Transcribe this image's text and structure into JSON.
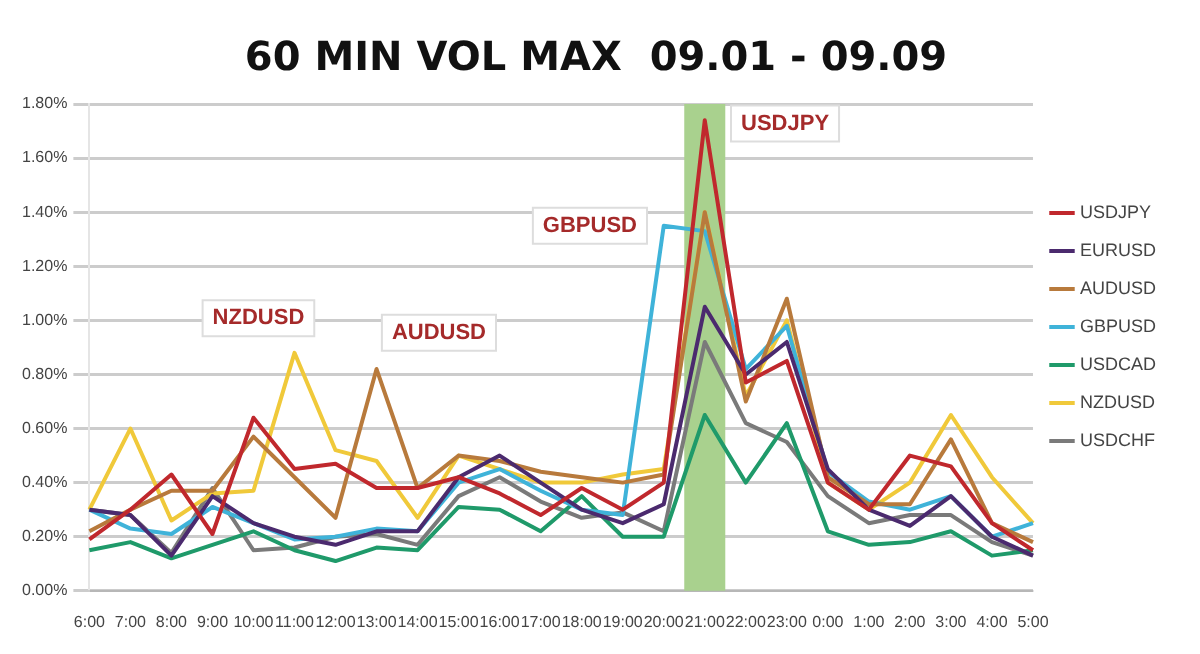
{
  "chart_data": {
    "type": "line",
    "title": "60 MIN VOL MAX  09.01 - 09.09",
    "categories": [
      "6:00",
      "7:00",
      "8:00",
      "9:00",
      "10:00",
      "11:00",
      "12:00",
      "13:00",
      "14:00",
      "15:00",
      "16:00",
      "17:00",
      "18:00",
      "19:00",
      "20:00",
      "21:00",
      "22:00",
      "23:00",
      "0:00",
      "1:00",
      "2:00",
      "3:00",
      "4:00",
      "5:00"
    ],
    "series": [
      {
        "name": "USDJPY",
        "color": "#c0282d",
        "values": [
          0.19,
          0.3,
          0.43,
          0.21,
          0.64,
          0.45,
          0.47,
          0.38,
          0.38,
          0.42,
          0.36,
          0.28,
          0.38,
          0.3,
          0.4,
          1.74,
          0.77,
          0.85,
          0.4,
          0.3,
          0.5,
          0.46,
          0.25,
          0.15
        ]
      },
      {
        "name": "EURUSD",
        "color": "#4b2a6e",
        "values": [
          0.3,
          0.28,
          0.13,
          0.35,
          0.25,
          0.2,
          0.17,
          0.22,
          0.22,
          0.42,
          0.5,
          0.4,
          0.3,
          0.25,
          0.32,
          1.05,
          0.8,
          0.92,
          0.45,
          0.3,
          0.24,
          0.35,
          0.2,
          0.13
        ]
      },
      {
        "name": "AUDUSD",
        "color": "#b87a3c",
        "values": [
          0.22,
          0.3,
          0.37,
          0.37,
          0.57,
          0.42,
          0.27,
          0.82,
          0.38,
          0.5,
          0.48,
          0.44,
          0.42,
          0.4,
          0.43,
          1.4,
          0.7,
          1.08,
          0.42,
          0.32,
          0.32,
          0.56,
          0.25,
          0.18
        ]
      },
      {
        "name": "GBPUSD",
        "color": "#3fb3d9",
        "values": [
          0.3,
          0.23,
          0.21,
          0.31,
          0.25,
          0.19,
          0.2,
          0.23,
          0.22,
          0.4,
          0.45,
          0.37,
          0.3,
          0.28,
          1.35,
          1.33,
          0.82,
          0.98,
          0.44,
          0.33,
          0.3,
          0.35,
          0.2,
          0.25
        ]
      },
      {
        "name": "USDCAD",
        "color": "#1f9a6a",
        "values": [
          0.15,
          0.18,
          0.12,
          0.17,
          0.22,
          0.15,
          0.11,
          0.16,
          0.15,
          0.31,
          0.3,
          0.22,
          0.35,
          0.2,
          0.2,
          0.65,
          0.4,
          0.62,
          0.22,
          0.17,
          0.18,
          0.22,
          0.13,
          0.15
        ]
      },
      {
        "name": "NZDUSD",
        "color": "#f0c93a",
        "values": [
          0.3,
          0.6,
          0.26,
          0.36,
          0.37,
          0.88,
          0.52,
          0.48,
          0.27,
          0.5,
          0.45,
          0.4,
          0.4,
          0.43,
          0.45,
          1.4,
          0.72,
          1.0,
          0.4,
          0.3,
          0.4,
          0.65,
          0.42,
          0.25
        ]
      },
      {
        "name": "USDCHF",
        "color": "#7a7a7a",
        "values": [
          0.3,
          0.28,
          0.14,
          0.38,
          0.15,
          0.16,
          0.2,
          0.21,
          0.17,
          0.35,
          0.42,
          0.33,
          0.27,
          0.29,
          0.22,
          0.92,
          0.62,
          0.55,
          0.35,
          0.25,
          0.28,
          0.28,
          0.18,
          0.13
        ]
      }
    ],
    "ylim": [
      0,
      1.8
    ],
    "yticks": [
      {
        "value": 0,
        "label": "0.00%"
      },
      {
        "value": 0.2,
        "label": "0.20%"
      },
      {
        "value": 0.4,
        "label": "0.40%"
      },
      {
        "value": 0.6,
        "label": "0.60%"
      },
      {
        "value": 0.8,
        "label": "0.80%"
      },
      {
        "value": 1.0,
        "label": "1.00%"
      },
      {
        "value": 1.2,
        "label": "1.20%"
      },
      {
        "value": 1.4,
        "label": "1.40%"
      },
      {
        "value": 1.6,
        "label": "1.60%"
      },
      {
        "value": 1.8,
        "label": "1.80%"
      }
    ],
    "bands": [
      {
        "axis": "x",
        "from": "21:00",
        "to": "21:00",
        "color": "#a9d18e"
      }
    ],
    "annotations": [
      "NZDUSD",
      "AUDUSD",
      "GBPUSD",
      "USDJPY"
    ],
    "grid": "y",
    "legend": "right",
    "marker": "none",
    "line_style": "solid"
  }
}
